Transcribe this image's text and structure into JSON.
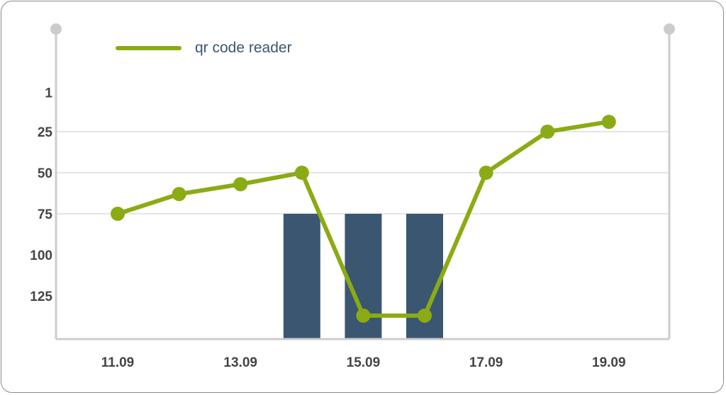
{
  "chart_data": {
    "type": "line",
    "title": "",
    "xlabel": "",
    "ylabel": "",
    "y_reversed": true,
    "ylim": [
      1,
      150
    ],
    "y_ticks": [
      1,
      25,
      50,
      75,
      100,
      125
    ],
    "y_gridlines": [
      25,
      50,
      75
    ],
    "x_ticks": [
      "11.09",
      "13.09",
      "15.09",
      "17.09",
      "19.09"
    ],
    "legend": {
      "placement": "top-left"
    },
    "colors": {
      "line": "#8aab14",
      "bar": "#3b5670",
      "axis": "#cccccc",
      "grid": "#cccccc"
    },
    "series": [
      {
        "name": "qr code reader",
        "type": "line",
        "x": [
          "11.09",
          "12.09",
          "13.09",
          "14.09",
          "15.09",
          "16.09",
          "17.09",
          "18.09",
          "19.09"
        ],
        "values": [
          75,
          63,
          57,
          50,
          137,
          137,
          50,
          25,
          19
        ]
      }
    ],
    "bars": {
      "x": [
        "14.09",
        "15.09",
        "16.09"
      ],
      "values": [
        75,
        75,
        75
      ]
    }
  }
}
